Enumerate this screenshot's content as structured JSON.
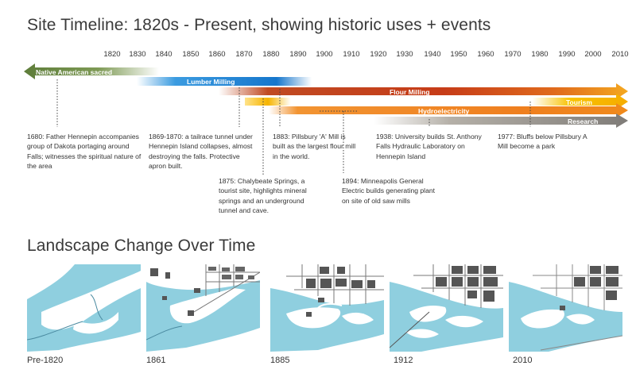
{
  "timeline": {
    "title": "Site Timeline: 1820s - Present, showing historic uses + events",
    "years": [
      "1820",
      "1830",
      "1840",
      "1850",
      "1860",
      "1870",
      "1880",
      "1890",
      "1900",
      "1910",
      "1920",
      "1930",
      "1940",
      "1950",
      "1960",
      "1970",
      "1980",
      "1990",
      "2000",
      "2010"
    ],
    "uses": [
      {
        "label": "Native American sacred",
        "color": "#5e7d3a"
      },
      {
        "label": "Lumber Milling",
        "color": "#1f7fd0"
      },
      {
        "label": "Flour Milling",
        "color": "#c4441b"
      },
      {
        "label": "Tourism",
        "color": "#f5a800"
      },
      {
        "label": "Hydroelectricity",
        "color": "#f08a1c"
      },
      {
        "label": "Research",
        "color": "#8c8c8c"
      }
    ],
    "events": [
      {
        "year": "1680",
        "text": "1680: Father Hennepin accompanies group of Dakota portaging around Falls; witnesses the spiritual nature of the area"
      },
      {
        "year": "1869-1870",
        "text": "1869-1870: a tailrace tunnel under Hennepin Island collapses, almost destroying the falls. Protective apron built."
      },
      {
        "year": "1875",
        "text": "1875: Chalybeate Springs, a tourist site, highlights mineral springs and an underground tunnel and cave."
      },
      {
        "year": "1883",
        "text": "1883: Pillsbury 'A' Mill is built as the largest flour mill in the world."
      },
      {
        "year": "1894",
        "text": "1894: Minneapolis General Electric builds generating plant on site of old saw mills"
      },
      {
        "year": "1938",
        "text": "1938: University builds St. Anthony Falls Hydraulic Laboratory on Hennepin Island"
      },
      {
        "year": "1977",
        "text": "1977: Bluffs below Pillsbury A Mill become a park"
      }
    ]
  },
  "landscape": {
    "title": "Landscape Change Over Time",
    "maps": [
      {
        "label": "Pre-1820"
      },
      {
        "label": "1861"
      },
      {
        "label": "1885"
      },
      {
        "label": "1912"
      },
      {
        "label": "2010"
      }
    ],
    "water_color": "#8fcfdf",
    "building_color": "#555555"
  }
}
